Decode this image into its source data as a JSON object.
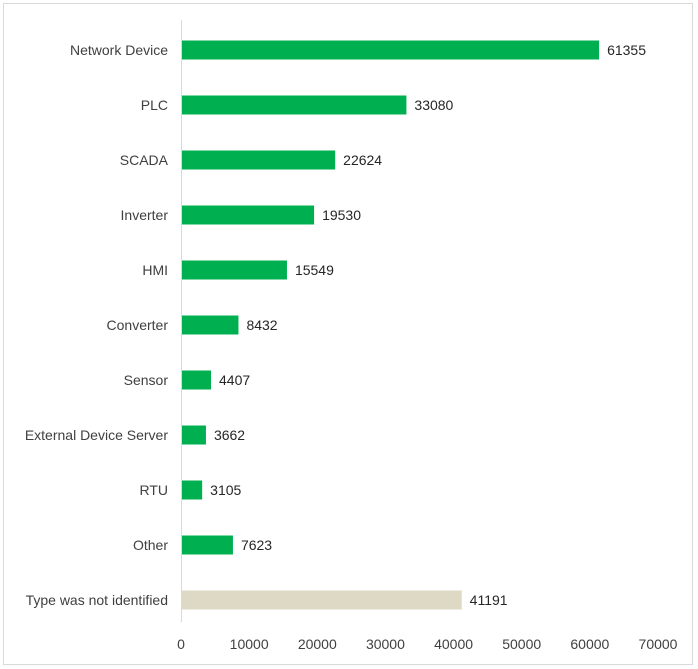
{
  "chart_data": {
    "type": "bar",
    "orientation": "horizontal",
    "title": "",
    "xlabel": "",
    "ylabel": "",
    "xlim": [
      0,
      70000
    ],
    "x_ticks": [
      "0",
      "10000",
      "20000",
      "30000",
      "40000",
      "50000",
      "60000",
      "70000"
    ],
    "grid": false,
    "legend": "none",
    "categories": [
      "Network Device",
      "PLC",
      "SCADA",
      "Inverter",
      "HMI",
      "Converter",
      "Sensor",
      "External Device Server",
      "RTU",
      "Other",
      "Type was not identified"
    ],
    "values": [
      61355,
      33080,
      22624,
      19530,
      15549,
      8432,
      4407,
      3662,
      3105,
      7623,
      41191
    ],
    "value_labels": [
      "61355",
      "33080",
      "22624",
      "19530",
      "15549",
      "8432",
      "4407",
      "3662",
      "3105",
      "7623",
      "41191"
    ],
    "colors": [
      "#00b050",
      "#00b050",
      "#00b050",
      "#00b050",
      "#00b050",
      "#00b050",
      "#00b050",
      "#00b050",
      "#00b050",
      "#00b050",
      "#ddd9c4"
    ]
  }
}
